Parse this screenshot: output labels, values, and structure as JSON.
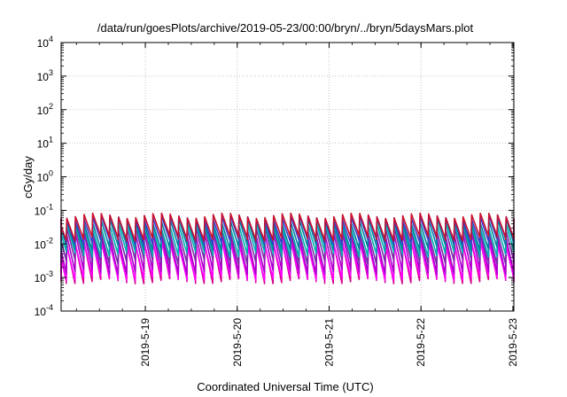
{
  "chart_data": {
    "type": "line",
    "title": "/data/run/goesPlots/archive/2019-05-23/00:00/bryn/../bryn/5daysMars.plot",
    "xlabel": "Coordinated Universal Time (UTC)",
    "ylabel": "cGy/day",
    "y_scale": "log",
    "ylim": [
      0.0001,
      10000
    ],
    "xlim": [
      "2019-05-18 02:00",
      "2019-05-23 00:15"
    ],
    "grid": true,
    "legend": "none",
    "y_ticks": [
      {
        "base": "10",
        "exp": "-4",
        "value": 0.0001
      },
      {
        "base": "10",
        "exp": "-3",
        "value": 0.001
      },
      {
        "base": "10",
        "exp": "-2",
        "value": 0.01
      },
      {
        "base": "10",
        "exp": "-1",
        "value": 0.1
      },
      {
        "base": "10",
        "exp": "0",
        "value": 1
      },
      {
        "base": "10",
        "exp": "1",
        "value": 10
      },
      {
        "base": "10",
        "exp": "2",
        "value": 100
      },
      {
        "base": "10",
        "exp": "3",
        "value": 1000
      },
      {
        "base": "10",
        "exp": "4",
        "value": 10000
      }
    ],
    "x_ticks": [
      {
        "label": "2019-5-19",
        "date": "2019-05-19 00:00"
      },
      {
        "label": "2019-5-20",
        "date": "2019-05-20 00:00"
      },
      {
        "label": "2019-5-21",
        "date": "2019-05-21 00:00"
      },
      {
        "label": "2019-5-22",
        "date": "2019-05-22 00:00"
      },
      {
        "label": "2019-5-23",
        "date": "2019-05-23 00:00"
      }
    ],
    "cycle_period_hours": 2.25,
    "series": [
      {
        "color": "#d6008a",
        "peak": 0.012,
        "trough": 0.0008
      },
      {
        "color": "#ff00ff",
        "peak": 0.01,
        "trough": 0.001
      },
      {
        "color": "#aa00cc",
        "peak": 0.018,
        "trough": 0.0015
      },
      {
        "color": "#7a2ca8",
        "peak": 0.026,
        "trough": 0.003
      },
      {
        "color": "#00b3b3",
        "peak": 0.035,
        "trough": 0.005
      },
      {
        "color": "#0080a0",
        "peak": 0.048,
        "trough": 0.008
      },
      {
        "color": "#3a3acd",
        "peak": 0.06,
        "trough": 0.012
      },
      {
        "color": "#c8102e",
        "peak": 0.07,
        "trough": 0.015
      }
    ]
  }
}
